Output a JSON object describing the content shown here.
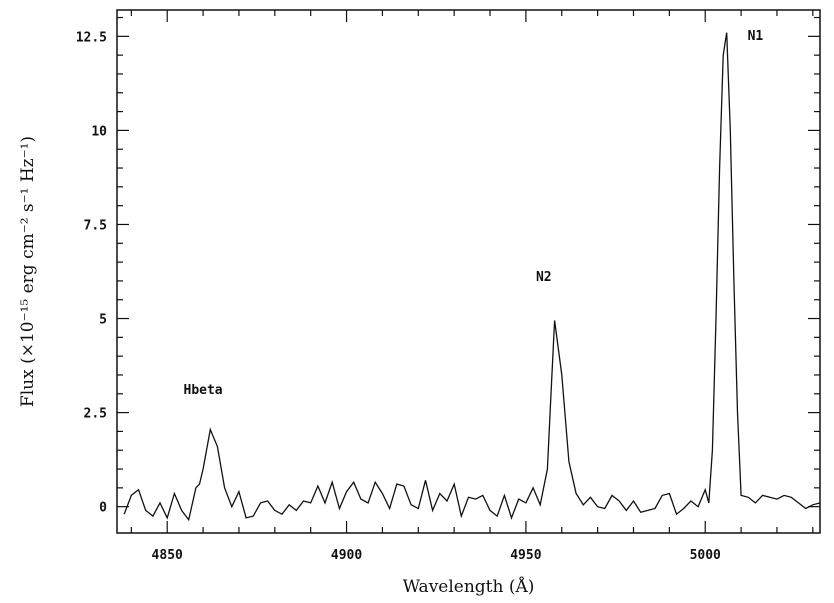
{
  "chart_data": {
    "type": "line",
    "title": "",
    "xlabel": "Wavelength (Å)",
    "ylabel": "Flux (×10⁻¹⁵ erg cm⁻² s⁻¹ Hz⁻¹)",
    "xlim": [
      4836,
      5032
    ],
    "ylim": [
      -0.7,
      13.2
    ],
    "xticks": [
      {
        "value": 4850,
        "label": "4850"
      },
      {
        "value": 4900,
        "label": "4900"
      },
      {
        "value": 4950,
        "label": "4950"
      },
      {
        "value": 5000,
        "label": "5000"
      }
    ],
    "yticks": [
      {
        "value": 0,
        "label": "0"
      },
      {
        "value": 2.5,
        "label": "2.5"
      },
      {
        "value": 5,
        "label": "5"
      },
      {
        "value": 7.5,
        "label": "7.5"
      },
      {
        "value": 10,
        "label": "10"
      },
      {
        "value": 12.5,
        "label": "12.5"
      }
    ],
    "grid": false,
    "annotations": [
      {
        "text": "Hbeta",
        "x": 4860,
        "y": 3.0
      },
      {
        "text": "N2",
        "x": 4955,
        "y": 6.0
      },
      {
        "text": "N1",
        "x": 5014,
        "y": 12.4
      }
    ],
    "series": [
      {
        "x": [
          4838,
          4840,
          4842,
          4844,
          4846,
          4848,
          4850,
          4852,
          4854,
          4856,
          4858,
          4859,
          4860,
          4862,
          4864,
          4866,
          4868,
          4870,
          4872,
          4874,
          4876,
          4878,
          4880,
          4882,
          4884,
          4886,
          4888,
          4890,
          4892,
          4894,
          4896,
          4898,
          4900,
          4902,
          4904,
          4906,
          4908,
          4910,
          4912,
          4914,
          4916,
          4918,
          4920,
          4922,
          4924,
          4926,
          4928,
          4930,
          4932,
          4934,
          4936,
          4938,
          4940,
          4942,
          4944,
          4946,
          4948,
          4950,
          4952,
          4954,
          4956,
          4957,
          4958,
          4960,
          4962,
          4964,
          4966,
          4968,
          4970,
          4972,
          4974,
          4976,
          4978,
          4980,
          4982,
          4984,
          4986,
          4988,
          4990,
          4992,
          4994,
          4996,
          4998,
          5000,
          5001,
          5002,
          5003,
          5004,
          5005,
          5006,
          5007,
          5008,
          5009,
          5010,
          5012,
          5014,
          5016,
          5018,
          5020,
          5022,
          5024,
          5026,
          5028,
          5030,
          5032
        ],
        "y": [
          -0.2,
          0.3,
          0.45,
          -0.1,
          -0.25,
          0.1,
          -0.3,
          0.35,
          -0.1,
          -0.35,
          0.5,
          0.6,
          1.0,
          2.05,
          1.6,
          0.5,
          0.0,
          0.4,
          -0.3,
          -0.25,
          0.1,
          0.15,
          -0.1,
          -0.2,
          0.05,
          -0.1,
          0.15,
          0.1,
          0.55,
          0.1,
          0.65,
          -0.05,
          0.4,
          0.65,
          0.2,
          0.1,
          0.65,
          0.35,
          -0.05,
          0.6,
          0.55,
          0.05,
          -0.05,
          0.7,
          -0.1,
          0.35,
          0.15,
          0.6,
          -0.25,
          0.25,
          0.2,
          0.3,
          -0.1,
          -0.25,
          0.3,
          -0.3,
          0.2,
          0.1,
          0.5,
          0.05,
          1.0,
          3.0,
          4.95,
          3.5,
          1.2,
          0.35,
          0.05,
          0.25,
          0.0,
          -0.05,
          0.3,
          0.15,
          -0.1,
          0.15,
          -0.15,
          -0.1,
          -0.05,
          0.3,
          0.35,
          -0.2,
          -0.05,
          0.15,
          0.0,
          0.45,
          0.1,
          1.5,
          5.0,
          9.0,
          12.0,
          12.6,
          10.0,
          6.0,
          2.5,
          0.3,
          0.25,
          0.1,
          0.3,
          0.25,
          0.2,
          0.3,
          0.25,
          0.1,
          -0.05,
          0.05,
          0.1
        ]
      }
    ]
  }
}
